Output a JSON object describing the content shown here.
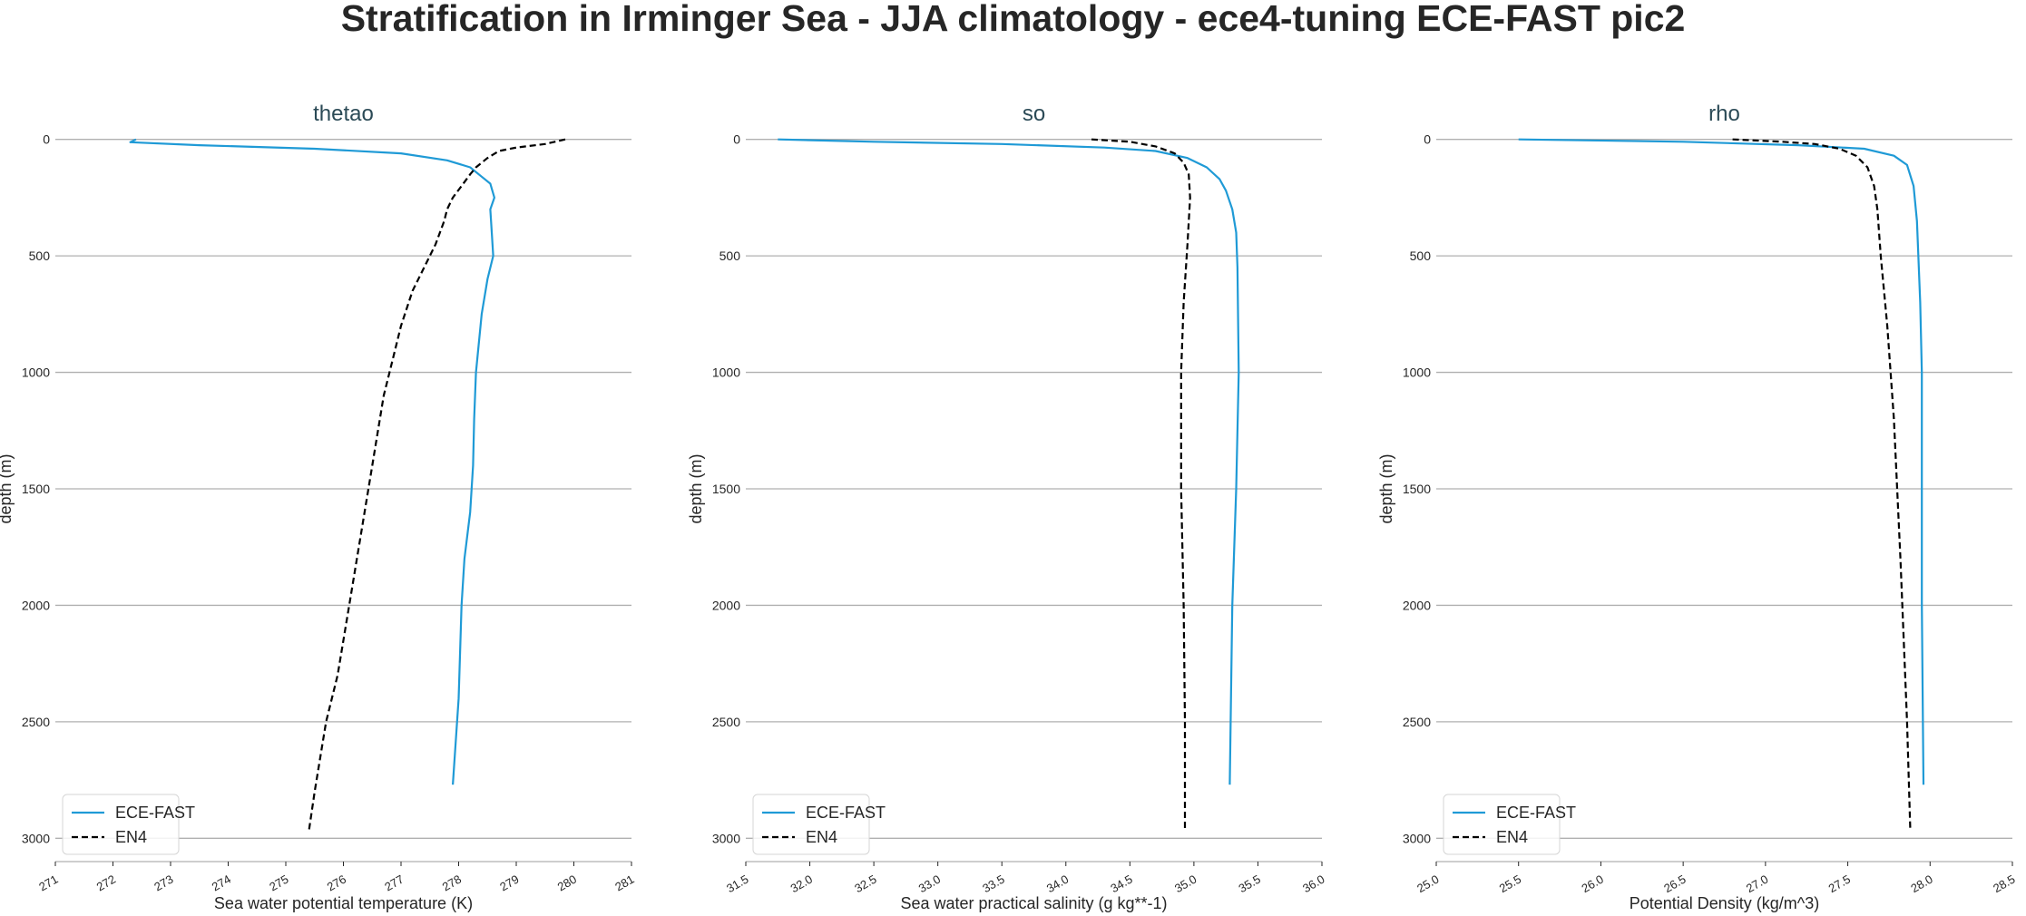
{
  "figure": {
    "title": "Stratification in Irminger Sea - JJA climatology - ece4-tuning ECE-FAST pic2"
  },
  "colors": {
    "ece_fast": "#1f9ad6",
    "en4": "#000000",
    "grid": "#b0b0b0",
    "subplot_title": "#2b4a56",
    "text": "#262626"
  },
  "chart_data": [
    {
      "type": "line",
      "title": "thetao",
      "xlabel": "Sea water potential temperature (K)",
      "ylabel": "depth (m)",
      "xlim": [
        271,
        281
      ],
      "ylim": [
        3100,
        -100
      ],
      "y_inverted": true,
      "xticks": [
        "271",
        "272",
        "273",
        "274",
        "275",
        "276",
        "277",
        "278",
        "279",
        "280",
        "281"
      ],
      "yticks": [
        "0",
        "500",
        "1000",
        "1500",
        "2000",
        "2500",
        "3000"
      ],
      "grid": "horizontal",
      "legend_position": "bottom-left",
      "series": [
        {
          "name": "ECE-FAST",
          "style": "solid",
          "x": [
            272.4,
            272.3,
            273.5,
            275.5,
            277.0,
            277.8,
            278.2,
            278.4,
            278.55,
            278.62,
            278.55,
            278.57,
            278.6,
            278.5,
            278.4,
            278.3,
            278.27,
            278.25,
            278.2,
            278.1,
            278.05,
            278.0,
            277.9
          ],
          "y": [
            0,
            12,
            25,
            40,
            60,
            90,
            120,
            160,
            190,
            250,
            300,
            380,
            500,
            600,
            750,
            1000,
            1200,
            1400,
            1600,
            1800,
            2000,
            2400,
            2770
          ]
        },
        {
          "name": "EN4",
          "style": "dashed",
          "x": [
            279.85,
            279.5,
            279.0,
            278.7,
            278.5,
            278.3,
            278.2,
            278.05,
            277.9,
            277.8,
            277.75,
            277.6,
            277.4,
            277.2,
            277.0,
            276.85,
            276.8,
            276.7,
            276.5,
            276.3,
            276.1,
            275.9,
            275.7,
            275.5,
            275.4
          ],
          "y": [
            0,
            20,
            35,
            50,
            80,
            120,
            150,
            200,
            250,
            300,
            350,
            450,
            550,
            650,
            800,
            950,
            1000,
            1100,
            1400,
            1700,
            2000,
            2300,
            2500,
            2800,
            2970
          ]
        }
      ]
    },
    {
      "type": "line",
      "title": "so",
      "xlabel": "Sea water practical salinity (g kg**-1)",
      "ylabel": "depth (m)",
      "xlim": [
        31.5,
        36.0
      ],
      "ylim": [
        3100,
        -100
      ],
      "y_inverted": true,
      "xticks": [
        "31.5",
        "32.0",
        "32.5",
        "33.0",
        "33.5",
        "34.0",
        "34.5",
        "35.0",
        "35.5",
        "36.0"
      ],
      "yticks": [
        "0",
        "500",
        "1000",
        "1500",
        "2000",
        "2500",
        "3000"
      ],
      "grid": "horizontal",
      "legend_position": "bottom-left",
      "series": [
        {
          "name": "ECE-FAST",
          "style": "solid",
          "x": [
            31.75,
            32.5,
            33.5,
            34.3,
            34.7,
            34.95,
            35.1,
            35.2,
            35.25,
            35.3,
            35.33,
            35.34,
            35.35,
            35.33,
            35.3,
            35.28
          ],
          "y": [
            0,
            10,
            20,
            35,
            50,
            80,
            120,
            170,
            220,
            300,
            400,
            550,
            1000,
            1500,
            2000,
            2770
          ]
        },
        {
          "name": "EN4",
          "style": "dashed",
          "x": [
            34.2,
            34.5,
            34.7,
            34.85,
            34.92,
            34.96,
            34.97,
            34.95,
            34.92,
            34.9,
            34.9,
            34.92,
            34.93,
            34.93
          ],
          "y": [
            0,
            10,
            30,
            60,
            100,
            150,
            250,
            450,
            700,
            1000,
            1500,
            2000,
            2500,
            2970
          ]
        }
      ]
    },
    {
      "type": "line",
      "title": "rho",
      "xlabel": "Potential Density (kg/m^3)",
      "ylabel": "depth (m)",
      "xlim": [
        25.0,
        28.5
      ],
      "ylim": [
        3100,
        -100
      ],
      "y_inverted": true,
      "xticks": [
        "25.0",
        "25.5",
        "26.0",
        "26.5",
        "27.0",
        "27.5",
        "28.0",
        "28.5"
      ],
      "yticks": [
        "0",
        "500",
        "1000",
        "1500",
        "2000",
        "2500",
        "3000"
      ],
      "grid": "horizontal",
      "legend_position": "bottom-left",
      "series": [
        {
          "name": "ECE-FAST",
          "style": "solid",
          "x": [
            25.5,
            26.5,
            27.2,
            27.6,
            27.78,
            27.86,
            27.9,
            27.92,
            27.94,
            27.95,
            27.95,
            27.96
          ],
          "y": [
            0,
            10,
            25,
            40,
            70,
            110,
            200,
            350,
            700,
            1000,
            2000,
            2770
          ]
        },
        {
          "name": "EN4",
          "style": "dashed",
          "x": [
            26.8,
            27.1,
            27.3,
            27.45,
            27.55,
            27.62,
            27.66,
            27.68,
            27.7,
            27.74,
            27.78,
            27.82,
            27.86,
            27.88
          ],
          "y": [
            0,
            10,
            20,
            40,
            70,
            120,
            200,
            300,
            500,
            800,
            1200,
            1800,
            2500,
            2970
          ]
        }
      ]
    }
  ]
}
